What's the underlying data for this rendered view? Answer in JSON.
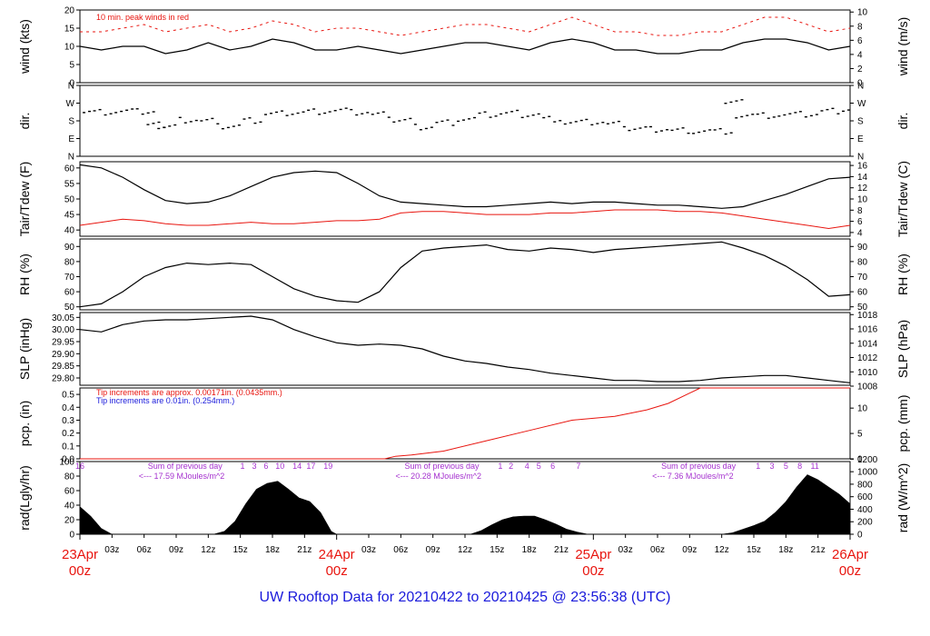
{
  "title": "UW Rooftop Data for 20210422  to  20210425 @ 23:56:38  (UTC)",
  "colors": {
    "red": "#e8150f",
    "blue": "#1a1adb",
    "purple": "#a531cf",
    "black": "#000000"
  },
  "chart_data": {
    "type": "line",
    "time_axis": {
      "range_hours": [
        0,
        72
      ],
      "hour_labels": [
        "03z",
        "06z",
        "09z",
        "12z",
        "15z",
        "18z",
        "21z",
        "03z",
        "06z",
        "09z",
        "12z",
        "15z",
        "18z",
        "21z",
        "03z",
        "06z",
        "09z",
        "12z",
        "15z",
        "18z",
        "21z"
      ],
      "hour_label_positions": [
        3,
        6,
        9,
        12,
        15,
        18,
        21,
        27,
        30,
        33,
        36,
        39,
        42,
        45,
        51,
        54,
        57,
        60,
        63,
        66,
        69
      ],
      "day_labels": [
        {
          "date": "23Apr",
          "time": "00z",
          "hour": 0
        },
        {
          "date": "24Apr",
          "time": "00z",
          "hour": 24
        },
        {
          "date": "25Apr",
          "time": "00z",
          "hour": 48
        },
        {
          "date": "26Apr",
          "time": "00z",
          "hour": 72
        }
      ]
    },
    "panels": [
      {
        "id": "wind",
        "left_label": "wind (kts)",
        "right_label": "wind (m/s)",
        "left_ticks": [
          "0",
          "5",
          "10",
          "15",
          "20"
        ],
        "right_ticks": [
          "0",
          "2",
          "4",
          "6",
          "8",
          "10"
        ],
        "ylim": [
          0,
          20
        ],
        "annotation": "10 min. peak winds in red",
        "series": [
          {
            "name": "wind speed (kts)",
            "color": "black",
            "hours": [
              0,
              2,
              4,
              6,
              8,
              10,
              12,
              14,
              16,
              18,
              20,
              22,
              24,
              26,
              28,
              30,
              32,
              34,
              36,
              38,
              40,
              42,
              44,
              46,
              48,
              50,
              52,
              54,
              56,
              58,
              60,
              62,
              64,
              66,
              68,
              70,
              72
            ],
            "values": [
              10,
              9,
              10,
              10,
              8,
              9,
              11,
              9,
              10,
              12,
              11,
              9,
              9,
              10,
              9,
              8,
              9,
              10,
              11,
              11,
              10,
              9,
              11,
              12,
              11,
              9,
              9,
              8,
              8,
              9,
              9,
              11,
              12,
              12,
              11,
              9,
              10
            ]
          },
          {
            "name": "10 min. peak winds",
            "color": "red",
            "hours": [
              0,
              2,
              4,
              6,
              8,
              10,
              12,
              14,
              16,
              18,
              20,
              22,
              24,
              26,
              28,
              30,
              32,
              34,
              36,
              38,
              40,
              42,
              44,
              46,
              48,
              50,
              52,
              54,
              56,
              58,
              60,
              62,
              64,
              66,
              68,
              70,
              72
            ],
            "values": [
              14,
              14,
              15,
              16,
              14,
              15,
              16,
              14,
              15,
              17,
              16,
              14,
              15,
              15,
              14,
              13,
              14,
              15,
              16,
              16,
              15,
              14,
              16,
              18,
              16,
              14,
              14,
              13,
              13,
              14,
              14,
              16,
              18,
              18,
              16,
              14,
              15
            ]
          }
        ]
      },
      {
        "id": "dir",
        "left_label": "dir.",
        "right_label": "dir.",
        "left_ticks": [
          "N",
          "E",
          "S",
          "W",
          "N"
        ],
        "right_ticks": [
          "N",
          "E",
          "S",
          "W",
          "N"
        ],
        "ylim": [
          0,
          360
        ],
        "series": [
          {
            "name": "wind direction (deg)",
            "color": "black",
            "hours": [
              0,
              2,
              4,
              6,
              7,
              8,
              10,
              12,
              14,
              16,
              18,
              20,
              22,
              24,
              26,
              28,
              30,
              32,
              34,
              36,
              38,
              40,
              42,
              44,
              46,
              48,
              50,
              52,
              54,
              56,
              58,
              60,
              61,
              62,
              64,
              66,
              68,
              70,
              72
            ],
            "values": [
              225,
              225,
              228,
              226,
              158,
              150,
              185,
              180,
              152,
              180,
              215,
              222,
              228,
              232,
              222,
              210,
              183,
              150,
              172,
              190,
              210,
              218,
              212,
              190,
              170,
              172,
              162,
              140,
              138,
              132,
              128,
              125,
              272,
              210,
              208,
              210,
              212,
              228,
              238
            ]
          }
        ]
      },
      {
        "id": "temp",
        "left_label": "Tair/Tdew (F)",
        "right_label": "Tair/Tdew (C)",
        "left_ticks": [
          "40",
          "45",
          "50",
          "55",
          "60"
        ],
        "right_ticks": [
          "4",
          "6",
          "8",
          "10",
          "12",
          "14",
          "16"
        ],
        "ylim": [
          38,
          62
        ],
        "series": [
          {
            "name": "Tair (F)",
            "color": "black",
            "hours": [
              0,
              2,
              4,
              6,
              8,
              10,
              12,
              14,
              16,
              18,
              20,
              22,
              24,
              26,
              28,
              30,
              32,
              34,
              36,
              38,
              40,
              42,
              44,
              46,
              48,
              50,
              52,
              54,
              56,
              58,
              60,
              62,
              64,
              66,
              68,
              70,
              72
            ],
            "values": [
              61,
              60,
              57,
              53,
              49.5,
              48.5,
              49,
              51,
              54,
              57,
              58.5,
              59,
              58.5,
              55,
              51,
              49,
              48.5,
              48,
              47.5,
              47.5,
              48,
              48.5,
              49,
              48.5,
              49,
              49,
              48.5,
              48,
              48,
              47.5,
              47,
              47.5,
              49.5,
              51.5,
              54,
              56.5,
              57
            ]
          },
          {
            "name": "Tdew (F)",
            "color": "red",
            "hours": [
              0,
              2,
              4,
              6,
              8,
              10,
              12,
              14,
              16,
              18,
              20,
              22,
              24,
              26,
              28,
              30,
              32,
              34,
              36,
              38,
              40,
              42,
              44,
              46,
              48,
              50,
              52,
              54,
              56,
              58,
              60,
              62,
              64,
              66,
              68,
              70,
              72
            ],
            "values": [
              41.5,
              42.5,
              43.5,
              43,
              42,
              41.5,
              41.5,
              42,
              42.5,
              42,
              42,
              42.5,
              43,
              43,
              43.5,
              45.5,
              46,
              46,
              45.5,
              45,
              45,
              45,
              45.5,
              45.5,
              46,
              46.5,
              46.5,
              46.5,
              46,
              46,
              45.5,
              44.5,
              43.5,
              42.5,
              41.5,
              40.5,
              41.5
            ]
          }
        ]
      },
      {
        "id": "rh",
        "left_label": "RH (%)",
        "right_label": "RH (%)",
        "left_ticks": [
          "50",
          "60",
          "70",
          "80",
          "90"
        ],
        "right_ticks": [
          "50",
          "60",
          "70",
          "80",
          "90"
        ],
        "ylim": [
          48,
          95
        ],
        "series": [
          {
            "name": "RH (%)",
            "color": "black",
            "hours": [
              0,
              2,
              4,
              6,
              8,
              10,
              12,
              14,
              16,
              18,
              20,
              22,
              24,
              26,
              28,
              30,
              32,
              34,
              36,
              38,
              40,
              42,
              44,
              46,
              48,
              50,
              52,
              54,
              56,
              58,
              60,
              62,
              64,
              66,
              68,
              70,
              72
            ],
            "values": [
              50,
              52,
              60,
              70,
              76,
              79,
              78,
              79,
              78,
              70,
              62,
              57,
              54,
              53,
              60,
              76,
              87,
              89,
              90,
              91,
              88,
              87,
              89,
              88,
              86,
              88,
              89,
              90,
              91,
              92,
              93,
              89,
              84,
              77,
              68,
              57,
              58
            ]
          }
        ]
      },
      {
        "id": "slp",
        "left_label": "SLP (inHg)",
        "right_label": "SLP (hPa)",
        "left_ticks": [
          "29.80",
          "29.85",
          "29.90",
          "29.95",
          "30.00",
          "30.05"
        ],
        "right_ticks": [
          "1008",
          "1010",
          "1012",
          "1014",
          "1016",
          "1018"
        ],
        "ylim": [
          29.77,
          30.07
        ],
        "series": [
          {
            "name": "SLP (inHg)",
            "color": "black",
            "hours": [
              0,
              2,
              4,
              6,
              8,
              10,
              12,
              14,
              16,
              18,
              20,
              22,
              24,
              26,
              28,
              30,
              32,
              34,
              36,
              38,
              40,
              42,
              44,
              46,
              48,
              50,
              52,
              54,
              56,
              58,
              60,
              62,
              64,
              66,
              68,
              70,
              72
            ],
            "values": [
              30.0,
              29.99,
              30.02,
              30.035,
              30.04,
              30.04,
              30.045,
              30.05,
              30.055,
              30.04,
              30.0,
              29.97,
              29.945,
              29.935,
              29.94,
              29.935,
              29.92,
              29.89,
              29.87,
              29.86,
              29.845,
              29.835,
              29.82,
              29.81,
              29.8,
              29.79,
              29.79,
              29.785,
              29.785,
              29.79,
              29.8,
              29.805,
              29.81,
              29.81,
              29.8,
              29.79,
              29.78
            ]
          }
        ]
      },
      {
        "id": "pcp",
        "left_label": "pcp. (in)",
        "right_label": "pcp. (mm)",
        "left_ticks": [
          "0.0",
          "0.1",
          "0.2",
          "0.3",
          "0.4",
          "0.5"
        ],
        "right_ticks": [
          "0",
          "5",
          "10"
        ],
        "ylim": [
          0,
          0.55
        ],
        "notes": [
          {
            "text": "Tip increments are approx. 0.00171in. (0.0435mm.)",
            "color": "red"
          },
          {
            "text": "Tip increments are 0.01in. (0.254mm.)",
            "color": "blue"
          }
        ],
        "series": [
          {
            "name": "accumulated precipitation (in)",
            "color": "red",
            "hours": [
              0,
              28.5,
              29.5,
              31,
              34,
              38,
              42,
              46,
              50,
              53,
              55,
              57,
              58,
              72
            ],
            "values": [
              0,
              0,
              0.02,
              0.03,
              0.06,
              0.14,
              0.22,
              0.3,
              0.33,
              0.38,
              0.43,
              0.51,
              0.55,
              0.55
            ]
          }
        ]
      },
      {
        "id": "rad",
        "left_label": "rad(Lgly/hr)",
        "right_label": "rad (W/m^2)",
        "left_ticks": [
          "0",
          "20",
          "40",
          "60",
          "80",
          "100"
        ],
        "right_ticks": [
          "0",
          "200",
          "400",
          "600",
          "800",
          "1000",
          "1200"
        ],
        "ylim": [
          0,
          100
        ],
        "hour_digits": [
          {
            "text": "16",
            "hour": 0
          },
          {
            "text": "1",
            "hour": 15.2
          },
          {
            "text": "3",
            "hour": 16.3
          },
          {
            "text": "6",
            "hour": 17.4
          },
          {
            "text": "10",
            "hour": 18.7
          },
          {
            "text": "14",
            "hour": 20.3
          },
          {
            "text": "17",
            "hour": 21.6
          },
          {
            "text": "19",
            "hour": 23.2
          },
          {
            "text": "1",
            "hour": 39.3
          },
          {
            "text": "2",
            "hour": 40.3
          },
          {
            "text": "4",
            "hour": 41.8
          },
          {
            "text": "5",
            "hour": 42.9
          },
          {
            "text": "6",
            "hour": 44.2
          },
          {
            "text": "7",
            "hour": 46.6
          },
          {
            "text": "1",
            "hour": 63.4
          },
          {
            "text": "3",
            "hour": 64.7
          },
          {
            "text": "5",
            "hour": 66
          },
          {
            "text": "8",
            "hour": 67.3
          },
          {
            "text": "11",
            "hour": 68.7
          }
        ],
        "daily_sums": [
          {
            "label": "Sum of previous day",
            "value": "<--- 17.59 MJoules/m^2",
            "hour": 5.5
          },
          {
            "label": "Sum of previous day",
            "value": "<--- 20.28 MJoules/m^2",
            "hour": 29.5
          },
          {
            "label": "Sum of previous day",
            "value": "<--- 7.36 MJoules/m^2",
            "hour": 53.5
          }
        ],
        "series": [
          {
            "name": "solar radiation (Lgly/hr)",
            "color": "black",
            "hours": [
              0,
              1,
              2,
              3,
              12.5,
              13.5,
              14.5,
              15.5,
              16.5,
              17.5,
              18.5,
              19.5,
              20.5,
              21.5,
              22.5,
              23.5,
              24,
              36.5,
              37.5,
              38.5,
              39.5,
              40.5,
              41.5,
              42.5,
              43.5,
              44.5,
              45.5,
              46.5,
              47.5,
              60,
              61,
              62,
              63,
              64,
              65,
              66,
              67,
              68,
              69,
              70,
              71,
              72
            ],
            "values": [
              38,
              25,
              8,
              0,
              0,
              4,
              18,
              42,
              62,
              70,
              73,
              62,
              50,
              45,
              30,
              4,
              0,
              0,
              5,
              13,
              20,
              24,
              25,
              25,
              20,
              14,
              7,
              3,
              0,
              0,
              2,
              7,
              12,
              18,
              30,
              45,
              65,
              82,
              75,
              65,
              55,
              42
            ]
          }
        ]
      }
    ]
  }
}
